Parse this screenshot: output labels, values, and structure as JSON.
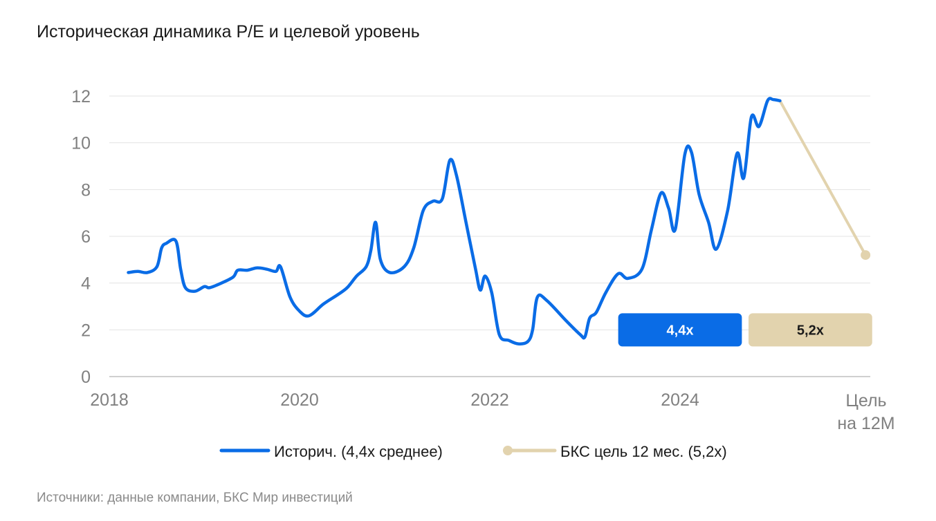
{
  "chart_data": {
    "type": "line",
    "title": "Историческая динамика P/E и целевой уровень",
    "ylim": [
      0,
      12
    ],
    "yticks": [
      0,
      2,
      4,
      6,
      8,
      10,
      12
    ],
    "xticks": [
      {
        "label": "2018",
        "x": 2018
      },
      {
        "label": "2020",
        "x": 2020
      },
      {
        "label": "2022",
        "x": 2022
      },
      {
        "label": "2024",
        "x": 2024
      }
    ],
    "target_tick": [
      "Цель",
      "на 12М"
    ],
    "grid": true,
    "legend_position": "bottom",
    "series": [
      {
        "name": "Историч. (4,4x среднее)",
        "color": "#0a6ce6",
        "points": [
          [
            2018.2,
            4.45
          ],
          [
            2018.3,
            4.5
          ],
          [
            2018.4,
            4.45
          ],
          [
            2018.5,
            4.7
          ],
          [
            2018.55,
            5.5
          ],
          [
            2018.6,
            5.7
          ],
          [
            2018.7,
            5.8
          ],
          [
            2018.75,
            4.6
          ],
          [
            2018.8,
            3.8
          ],
          [
            2018.9,
            3.65
          ],
          [
            2019.0,
            3.85
          ],
          [
            2019.05,
            3.8
          ],
          [
            2019.15,
            3.95
          ],
          [
            2019.3,
            4.25
          ],
          [
            2019.35,
            4.55
          ],
          [
            2019.45,
            4.55
          ],
          [
            2019.55,
            4.65
          ],
          [
            2019.65,
            4.6
          ],
          [
            2019.75,
            4.5
          ],
          [
            2019.8,
            4.7
          ],
          [
            2019.9,
            3.4
          ],
          [
            2020.0,
            2.8
          ],
          [
            2020.1,
            2.6
          ],
          [
            2020.25,
            3.1
          ],
          [
            2020.4,
            3.5
          ],
          [
            2020.5,
            3.8
          ],
          [
            2020.6,
            4.3
          ],
          [
            2020.7,
            4.7
          ],
          [
            2020.75,
            5.4
          ],
          [
            2020.8,
            6.6
          ],
          [
            2020.85,
            5.0
          ],
          [
            2020.95,
            4.45
          ],
          [
            2021.1,
            4.7
          ],
          [
            2021.2,
            5.5
          ],
          [
            2021.3,
            7.1
          ],
          [
            2021.4,
            7.5
          ],
          [
            2021.5,
            7.6
          ],
          [
            2021.58,
            9.25
          ],
          [
            2021.65,
            8.6
          ],
          [
            2021.75,
            6.6
          ],
          [
            2021.85,
            4.6
          ],
          [
            2021.9,
            3.7
          ],
          [
            2021.95,
            4.3
          ],
          [
            2022.02,
            3.6
          ],
          [
            2022.1,
            1.8
          ],
          [
            2022.2,
            1.55
          ],
          [
            2022.3,
            1.4
          ],
          [
            2022.4,
            1.5
          ],
          [
            2022.45,
            2.0
          ],
          [
            2022.5,
            3.4
          ],
          [
            2022.6,
            3.25
          ],
          [
            2022.8,
            2.4
          ],
          [
            2022.95,
            1.8
          ],
          [
            2023.0,
            1.7
          ],
          [
            2023.05,
            2.5
          ],
          [
            2023.12,
            2.75
          ],
          [
            2023.22,
            3.6
          ],
          [
            2023.35,
            4.4
          ],
          [
            2023.45,
            4.2
          ],
          [
            2023.6,
            4.6
          ],
          [
            2023.7,
            6.3
          ],
          [
            2023.8,
            7.85
          ],
          [
            2023.88,
            7.2
          ],
          [
            2023.95,
            6.3
          ],
          [
            2024.05,
            9.5
          ],
          [
            2024.12,
            9.6
          ],
          [
            2024.2,
            7.8
          ],
          [
            2024.3,
            6.6
          ],
          [
            2024.38,
            5.45
          ],
          [
            2024.5,
            7.1
          ],
          [
            2024.6,
            9.55
          ],
          [
            2024.67,
            8.5
          ],
          [
            2024.75,
            11.1
          ],
          [
            2024.83,
            10.7
          ],
          [
            2024.92,
            11.8
          ],
          [
            2024.98,
            11.85
          ],
          [
            2025.05,
            11.8
          ]
        ]
      },
      {
        "name": "БКС цель 12 мес. (5,2x)",
        "color": "#e2d3ae",
        "points": [
          [
            2025.05,
            11.8
          ],
          [
            2025.95,
            5.2
          ]
        ]
      }
    ],
    "badges": [
      {
        "text": "4,4x",
        "x_from": 2023.35,
        "x_to": 2024.65,
        "y": 2.0,
        "bg": "#0a6ce6",
        "fg": "#ffffff"
      },
      {
        "text": "5,2x",
        "x_from": 2024.72,
        "x_to": 2026.02,
        "y": 2.0,
        "bg": "#e2d3ae",
        "fg": "#1a1a1a"
      }
    ]
  },
  "source": "Источники: данные компании, БКС Мир инвестиций"
}
